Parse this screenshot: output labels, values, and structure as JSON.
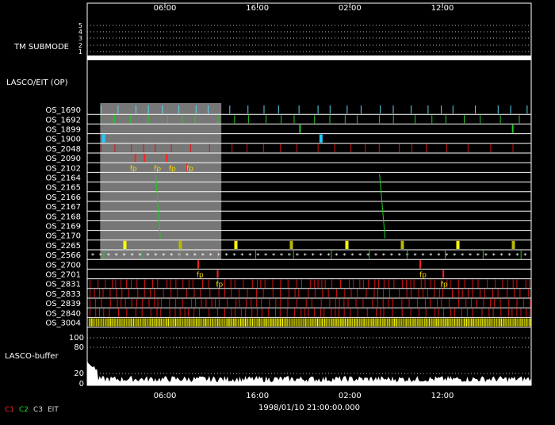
{
  "chart_data": {
    "type": "timeline",
    "title": "",
    "time_axis": {
      "tick_labels_top": [
        "06:00",
        "16:00",
        "02:00",
        "12:00"
      ],
      "tick_labels_bottom": [
        "06:00",
        "16:00",
        "02:00",
        "12:00"
      ],
      "center_label": "1998/01/10 21:00:00.000"
    },
    "panels": {
      "tm_submode": {
        "label": "TM SUBMODE",
        "levels": [
          "5",
          "4",
          "3",
          "2",
          "1"
        ],
        "active_level": "1"
      },
      "op_label": "LASCO/EIT (OP)",
      "shaded_region": {
        "start_hour": 1.4,
        "end_hour": 14.5
      },
      "os_rows": [
        {
          "name": "OS_1690",
          "color": "#5ad8f0",
          "style": "sparse"
        },
        {
          "name": "OS_1692",
          "color": "#22cc22",
          "style": "sparse"
        },
        {
          "name": "OS_1899",
          "color": "#22cc22",
          "style": "rare"
        },
        {
          "name": "OS_1900",
          "color": "#22c8ff",
          "style": "blocks"
        },
        {
          "name": "OS_2048",
          "color": "#dd1111",
          "style": "sparse"
        },
        {
          "name": "OS_2090",
          "color": "#ffcc00",
          "style": "clusters"
        },
        {
          "name": "OS_2102",
          "color": "#ffcc00",
          "style": "clusters"
        },
        {
          "name": "OS_2164",
          "color": "#22cc22",
          "style": "none"
        },
        {
          "name": "OS_2165",
          "color": "#22cc22",
          "style": "none"
        },
        {
          "name": "OS_2166",
          "color": "#22cc22",
          "style": "none"
        },
        {
          "name": "OS_2167",
          "color": "#22cc22",
          "style": "none"
        },
        {
          "name": "OS_2168",
          "color": "#22cc22",
          "style": "none"
        },
        {
          "name": "OS_2169",
          "color": "#22cc22",
          "style": "none"
        },
        {
          "name": "OS_2170",
          "color": "#5ad8f0",
          "style": "none"
        },
        {
          "name": "OS_2265",
          "color": "#ffff00",
          "style": "blocks"
        },
        {
          "name": "OS_2566",
          "color": "#22cc22",
          "style": "stars"
        },
        {
          "name": "OS_2700",
          "color": "#ff3322",
          "style": "clusters"
        },
        {
          "name": "OS_2701",
          "color": "#ff3322",
          "style": "clusters"
        },
        {
          "name": "OS_2831",
          "color": "#dd1111",
          "style": "dense"
        },
        {
          "name": "OS_2833",
          "color": "#dd1111",
          "style": "dense"
        },
        {
          "name": "OS_2839",
          "color": "#dd1111",
          "style": "dense"
        },
        {
          "name": "OS_2840",
          "color": "#dd1111",
          "style": "dense"
        },
        {
          "name": "OS_3004",
          "color": "#ffff00",
          "style": "solid"
        }
      ],
      "annotations": [
        "fp"
      ],
      "buffer": {
        "label": "LASCO-buffer",
        "y_ticks": [
          "100",
          "80",
          "20",
          "0"
        ]
      }
    },
    "legend": [
      {
        "label": "C1",
        "color": "#ff2222"
      },
      {
        "label": "C2",
        "color": "#22dd22"
      },
      {
        "label": "C3",
        "color": "#dddddd"
      },
      {
        "label": "EIT",
        "color": "#dddddd"
      }
    ]
  }
}
